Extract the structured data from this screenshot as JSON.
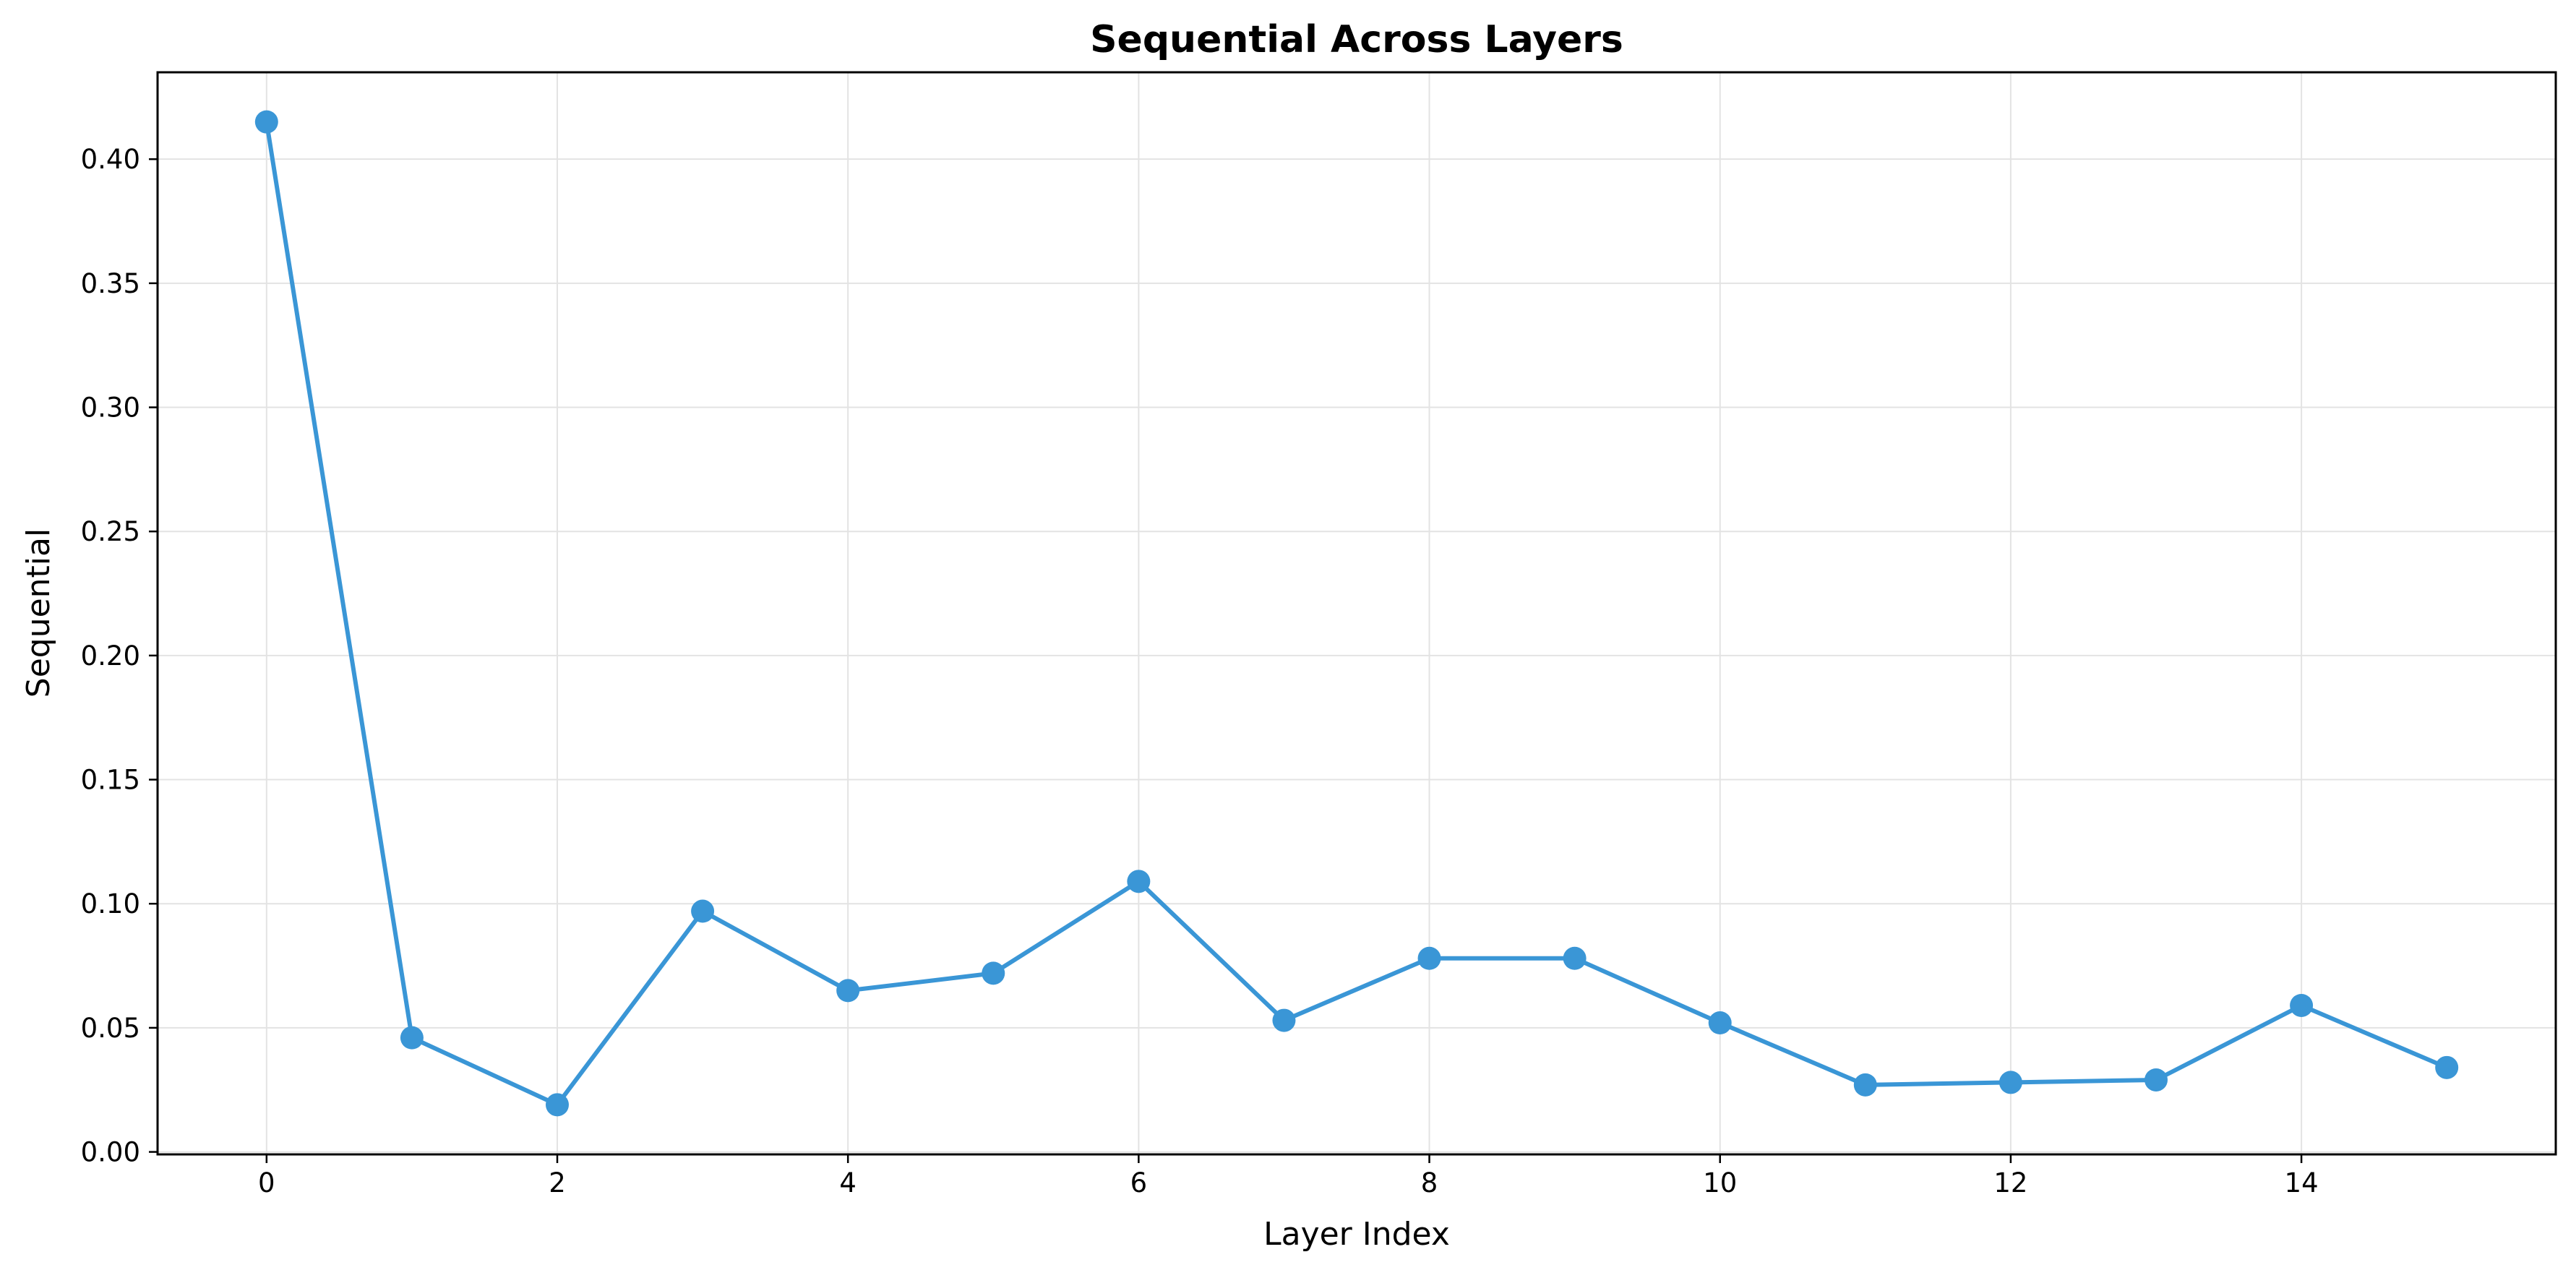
{
  "chart_data": {
    "type": "line",
    "title": "Sequential Across Layers",
    "xlabel": "Layer Index",
    "ylabel": "Sequential",
    "xlim": [
      -0.75,
      15.75
    ],
    "ylim": [
      -0.001,
      0.435
    ],
    "xticks": [
      0,
      2,
      4,
      6,
      8,
      10,
      12,
      14
    ],
    "yticks": [
      0.0,
      0.05,
      0.1,
      0.15,
      0.2,
      0.25,
      0.3,
      0.35,
      0.4
    ],
    "ytick_labels": [
      "0.00",
      "0.05",
      "0.10",
      "0.15",
      "0.20",
      "0.25",
      "0.30",
      "0.35",
      "0.40"
    ],
    "grid": true,
    "legend": "none",
    "series": [
      {
        "color": "#3a96d6",
        "marker": "circle",
        "x": [
          0,
          1,
          2,
          3,
          4,
          5,
          6,
          7,
          8,
          9,
          10,
          11,
          12,
          13,
          14,
          15
        ],
        "y": [
          0.415,
          0.046,
          0.019,
          0.097,
          0.065,
          0.072,
          0.109,
          0.053,
          0.078,
          0.078,
          0.052,
          0.027,
          0.028,
          0.029,
          0.059,
          0.034
        ]
      }
    ]
  }
}
